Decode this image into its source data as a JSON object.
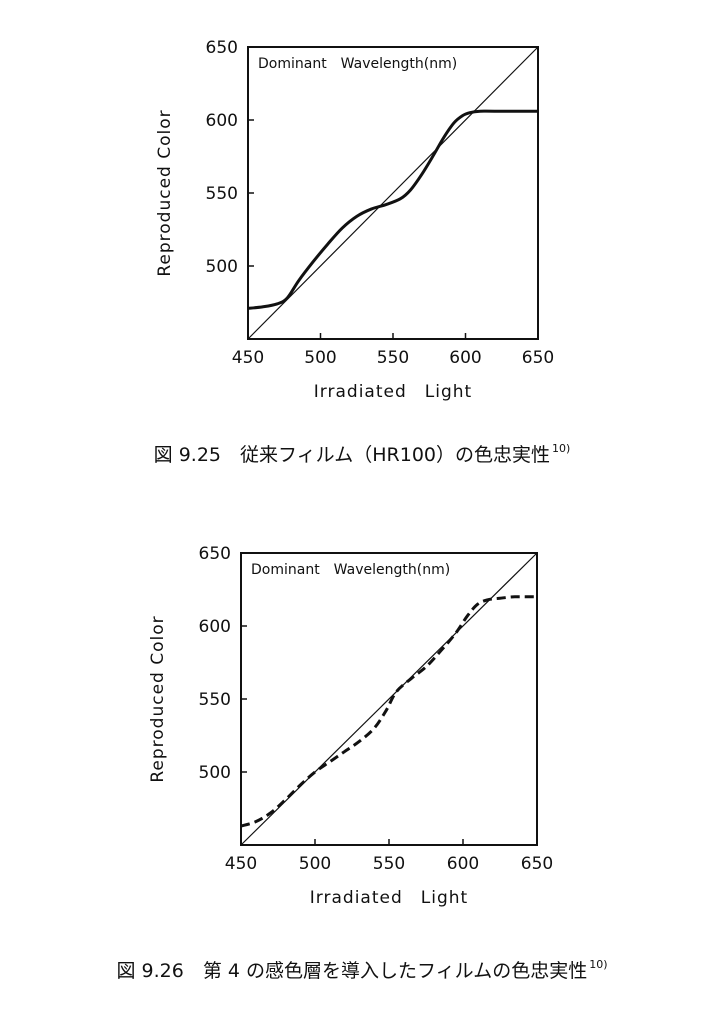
{
  "chart_data": [
    {
      "type": "line",
      "annotation": "Dominant　Wavelength(nm)",
      "xlabel": "Irradiated　Light",
      "ylabel": "Reproduced Color",
      "xlim": [
        450,
        650
      ],
      "ylim": [
        450,
        650
      ],
      "x_ticks": [
        "450",
        "500",
        "550",
        "600",
        "650"
      ],
      "y_ticks": [
        "500",
        "550",
        "600",
        "650"
      ],
      "reference_line": [
        [
          450,
          450
        ],
        [
          650,
          650
        ]
      ],
      "series": [
        {
          "line_style": "solid",
          "x": [
            450,
            460,
            470,
            477,
            485,
            495,
            505,
            515,
            525,
            535,
            545,
            555,
            562,
            570,
            578,
            585,
            592,
            598,
            603,
            610,
            620,
            650
          ],
          "y": [
            471,
            472,
            474,
            478,
            490,
            503,
            515,
            526,
            534,
            539,
            542,
            546,
            552,
            563,
            576,
            588,
            598,
            603,
            605,
            606,
            606,
            606
          ]
        }
      ],
      "caption": {
        "label": "図 9.25　従来フィルム（HR100）の色忠実性",
        "ref": "10)"
      }
    },
    {
      "type": "line",
      "annotation": "Dominant　Wavelength(nm)",
      "xlabel": "Irradiated　Light",
      "ylabel": "Reproduced Color",
      "xlim": [
        450,
        650
      ],
      "ylim": [
        450,
        650
      ],
      "x_ticks": [
        "450",
        "500",
        "550",
        "600",
        "650"
      ],
      "y_ticks": [
        "500",
        "550",
        "600",
        "650"
      ],
      "reference_line": [
        [
          450,
          450
        ],
        [
          650,
          650
        ]
      ],
      "series": [
        {
          "line_style": "dashed",
          "x": [
            450,
            460,
            470,
            480,
            490,
            500,
            510,
            520,
            530,
            540,
            548,
            555,
            565,
            575,
            585,
            595,
            603,
            610,
            617,
            625,
            635,
            650
          ],
          "y": [
            463,
            466,
            472,
            481,
            491,
            500,
            507,
            514,
            521,
            530,
            542,
            555,
            564,
            572,
            583,
            595,
            607,
            615,
            618,
            619,
            620,
            620
          ]
        }
      ],
      "caption": {
        "label": "図 9.26　第 4 の感色層を導入したフィルムの色忠実性",
        "ref": "10)"
      }
    }
  ]
}
